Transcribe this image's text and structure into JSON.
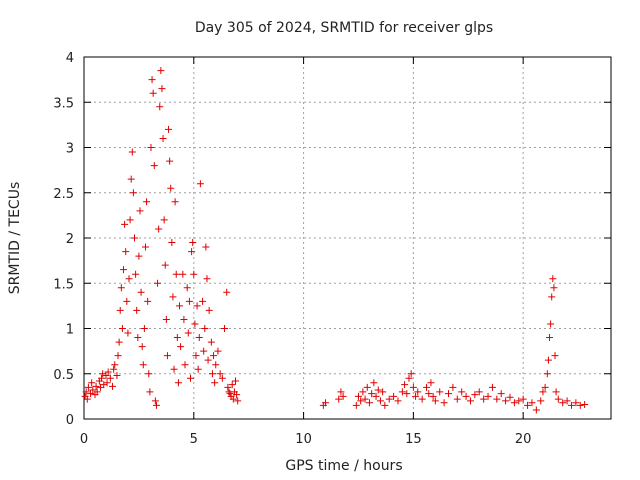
{
  "chart_data": {
    "type": "scatter",
    "title": "Day 305 of 2024, SRMTID for receiver glps",
    "xlabel": "GPS time / hours",
    "ylabel": "SRMTID / TECUs",
    "xlim": [
      0,
      24
    ],
    "ylim": [
      0,
      4
    ],
    "xticks": [
      0,
      5,
      10,
      15,
      20
    ],
    "yticks": [
      0,
      0.5,
      1,
      1.5,
      2,
      2.5,
      3,
      3.5,
      4
    ],
    "xtick_labels": [
      "0",
      "5",
      "10",
      "15",
      "20"
    ],
    "ytick_labels": [
      "0",
      "0.5",
      "1",
      "1.5",
      "2",
      "2.5",
      "3",
      "3.5",
      "4"
    ],
    "grid": true,
    "marker": "+",
    "colors": {
      "series": "#e00000",
      "grid": "#a0a0a0",
      "axis": "#000000"
    },
    "series": [
      {
        "name": "SRMTID",
        "points": [
          [
            0.05,
            0.25
          ],
          [
            0.1,
            0.3
          ],
          [
            0.15,
            0.22
          ],
          [
            0.2,
            0.35
          ],
          [
            0.3,
            0.28
          ],
          [
            0.35,
            0.4
          ],
          [
            0.4,
            0.32
          ],
          [
            0.5,
            0.27
          ],
          [
            0.55,
            0.36
          ],
          [
            0.6,
            0.3
          ],
          [
            0.7,
            0.42
          ],
          [
            0.75,
            0.35
          ],
          [
            0.8,
            0.45
          ],
          [
            0.85,
            0.5
          ],
          [
            0.9,
            0.38
          ],
          [
            1.0,
            0.48
          ],
          [
            1.05,
            0.4
          ],
          [
            1.1,
            0.52
          ],
          [
            1.2,
            0.45
          ],
          [
            1.3,
            0.36
          ],
          [
            1.35,
            0.55
          ],
          [
            1.4,
            0.6
          ],
          [
            1.5,
            0.48
          ],
          [
            1.55,
            0.7
          ],
          [
            1.6,
            0.85
          ],
          [
            1.65,
            1.2
          ],
          [
            1.7,
            1.45
          ],
          [
            1.75,
            1.0
          ],
          [
            1.8,
            1.65
          ],
          [
            1.85,
            2.15
          ],
          [
            1.9,
            1.85
          ],
          [
            1.95,
            1.3
          ],
          [
            2.0,
            0.95
          ],
          [
            2.05,
            1.55
          ],
          [
            2.1,
            2.2
          ],
          [
            2.15,
            2.65
          ],
          [
            2.2,
            2.95
          ],
          [
            2.25,
            2.5
          ],
          [
            2.3,
            2.0
          ],
          [
            2.35,
            1.6
          ],
          [
            2.4,
            1.2
          ],
          [
            2.45,
            0.9
          ],
          [
            2.5,
            1.8
          ],
          [
            2.55,
            2.3
          ],
          [
            2.6,
            1.4
          ],
          [
            2.65,
            0.8
          ],
          [
            2.7,
            0.6
          ],
          [
            2.75,
            1.0
          ],
          [
            2.8,
            1.9
          ],
          [
            2.85,
            2.4
          ],
          [
            2.9,
            1.3
          ],
          [
            2.95,
            0.5
          ],
          [
            3.0,
            0.3
          ],
          [
            3.05,
            3.0
          ],
          [
            3.1,
            3.75
          ],
          [
            3.15,
            3.6
          ],
          [
            3.2,
            2.8
          ],
          [
            3.25,
            0.2
          ],
          [
            3.3,
            0.15
          ],
          [
            3.35,
            1.5
          ],
          [
            3.4,
            2.1
          ],
          [
            3.45,
            3.45
          ],
          [
            3.5,
            3.85
          ],
          [
            3.55,
            3.65
          ],
          [
            3.6,
            3.1
          ],
          [
            3.65,
            2.2
          ],
          [
            3.7,
            1.7
          ],
          [
            3.75,
            1.1
          ],
          [
            3.8,
            0.7
          ],
          [
            3.85,
            3.2
          ],
          [
            3.9,
            2.85
          ],
          [
            3.95,
            2.55
          ],
          [
            4.0,
            1.95
          ],
          [
            4.05,
            1.35
          ],
          [
            4.1,
            0.55
          ],
          [
            4.15,
            2.4
          ],
          [
            4.2,
            1.6
          ],
          [
            4.25,
            0.9
          ],
          [
            4.3,
            0.4
          ],
          [
            4.35,
            1.25
          ],
          [
            4.4,
            0.8
          ],
          [
            4.5,
            1.6
          ],
          [
            4.55,
            1.1
          ],
          [
            4.6,
            0.6
          ],
          [
            4.7,
            1.45
          ],
          [
            4.75,
            0.95
          ],
          [
            4.8,
            1.3
          ],
          [
            4.85,
            0.45
          ],
          [
            4.9,
            1.85
          ],
          [
            4.95,
            1.95
          ],
          [
            5.0,
            1.6
          ],
          [
            5.05,
            1.05
          ],
          [
            5.1,
            0.7
          ],
          [
            5.15,
            1.25
          ],
          [
            5.2,
            0.55
          ],
          [
            5.25,
            0.9
          ],
          [
            5.3,
            2.6
          ],
          [
            5.4,
            1.3
          ],
          [
            5.45,
            0.75
          ],
          [
            5.5,
            1.0
          ],
          [
            5.55,
            1.9
          ],
          [
            5.6,
            1.55
          ],
          [
            5.65,
            0.65
          ],
          [
            5.7,
            1.2
          ],
          [
            5.8,
            0.85
          ],
          [
            5.85,
            0.5
          ],
          [
            5.9,
            0.7
          ],
          [
            5.95,
            0.4
          ],
          [
            6.0,
            0.6
          ],
          [
            6.1,
            0.75
          ],
          [
            6.2,
            0.5
          ],
          [
            6.3,
            0.45
          ],
          [
            6.4,
            1.0
          ],
          [
            6.5,
            1.4
          ],
          [
            6.55,
            0.35
          ],
          [
            6.6,
            0.3
          ],
          [
            6.65,
            0.28
          ],
          [
            6.7,
            0.25
          ],
          [
            6.75,
            0.38
          ],
          [
            6.8,
            0.22
          ],
          [
            6.85,
            0.3
          ],
          [
            6.9,
            0.42
          ],
          [
            6.95,
            0.27
          ],
          [
            7.0,
            0.2
          ],
          [
            10.9,
            0.15
          ],
          [
            11.0,
            0.18
          ],
          [
            11.6,
            0.22
          ],
          [
            11.7,
            0.3
          ],
          [
            11.8,
            0.25
          ],
          [
            12.4,
            0.15
          ],
          [
            12.5,
            0.25
          ],
          [
            12.6,
            0.2
          ],
          [
            12.7,
            0.3
          ],
          [
            12.8,
            0.22
          ],
          [
            12.9,
            0.35
          ],
          [
            13.0,
            0.18
          ],
          [
            13.1,
            0.28
          ],
          [
            13.2,
            0.4
          ],
          [
            13.3,
            0.25
          ],
          [
            13.4,
            0.32
          ],
          [
            13.5,
            0.2
          ],
          [
            13.6,
            0.3
          ],
          [
            13.7,
            0.15
          ],
          [
            13.9,
            0.22
          ],
          [
            14.1,
            0.25
          ],
          [
            14.3,
            0.2
          ],
          [
            14.5,
            0.3
          ],
          [
            14.6,
            0.38
          ],
          [
            14.7,
            0.28
          ],
          [
            14.8,
            0.45
          ],
          [
            14.9,
            0.5
          ],
          [
            15.0,
            0.35
          ],
          [
            15.1,
            0.25
          ],
          [
            15.2,
            0.3
          ],
          [
            15.4,
            0.22
          ],
          [
            15.6,
            0.35
          ],
          [
            15.7,
            0.28
          ],
          [
            15.8,
            0.4
          ],
          [
            15.9,
            0.25
          ],
          [
            16.0,
            0.2
          ],
          [
            16.2,
            0.3
          ],
          [
            16.4,
            0.18
          ],
          [
            16.6,
            0.28
          ],
          [
            16.8,
            0.35
          ],
          [
            17.0,
            0.22
          ],
          [
            17.2,
            0.3
          ],
          [
            17.4,
            0.25
          ],
          [
            17.6,
            0.2
          ],
          [
            17.8,
            0.27
          ],
          [
            18.0,
            0.3
          ],
          [
            18.2,
            0.22
          ],
          [
            18.4,
            0.25
          ],
          [
            18.6,
            0.35
          ],
          [
            18.8,
            0.22
          ],
          [
            19.0,
            0.28
          ],
          [
            19.2,
            0.2
          ],
          [
            19.4,
            0.24
          ],
          [
            19.6,
            0.18
          ],
          [
            19.8,
            0.2
          ],
          [
            20.0,
            0.22
          ],
          [
            20.2,
            0.15
          ],
          [
            20.4,
            0.18
          ],
          [
            20.6,
            0.1
          ],
          [
            20.8,
            0.2
          ],
          [
            20.9,
            0.3
          ],
          [
            21.0,
            0.35
          ],
          [
            21.1,
            0.5
          ],
          [
            21.15,
            0.65
          ],
          [
            21.2,
            0.9
          ],
          [
            21.25,
            1.05
          ],
          [
            21.3,
            1.35
          ],
          [
            21.35,
            1.55
          ],
          [
            21.4,
            1.45
          ],
          [
            21.45,
            0.7
          ],
          [
            21.5,
            0.3
          ],
          [
            21.6,
            0.22
          ],
          [
            21.8,
            0.18
          ],
          [
            22.0,
            0.2
          ],
          [
            22.2,
            0.15
          ],
          [
            22.4,
            0.18
          ],
          [
            22.6,
            0.15
          ],
          [
            22.8,
            0.16
          ]
        ]
      }
    ]
  }
}
